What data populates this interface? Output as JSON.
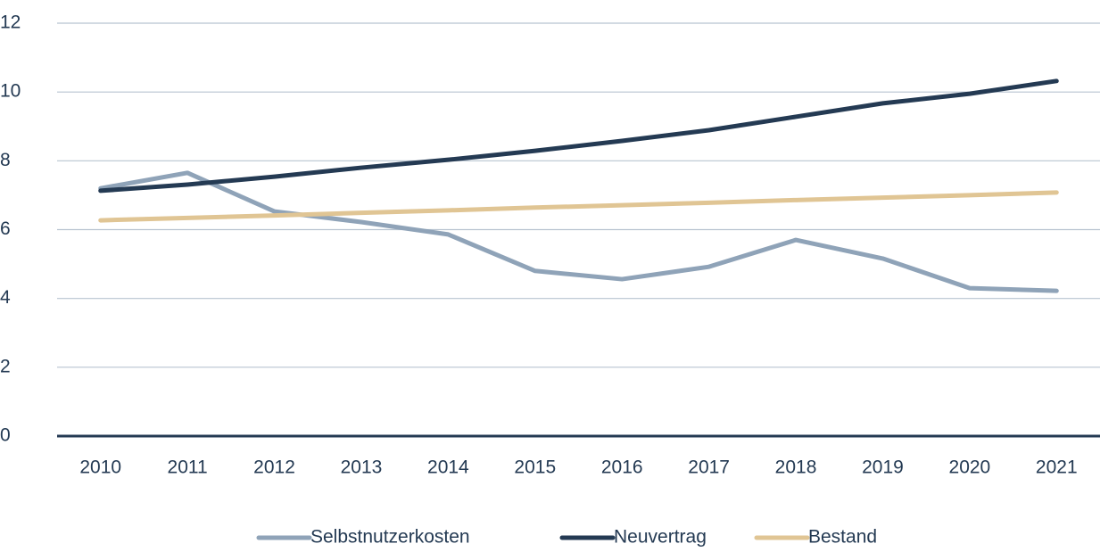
{
  "chart_data": {
    "type": "line",
    "categories": [
      "2010",
      "2011",
      "2012",
      "2013",
      "2014",
      "2015",
      "2016",
      "2017",
      "2018",
      "2019",
      "2020",
      "2021"
    ],
    "series": [
      {
        "name": "Selbstnutzerkosten",
        "color": "#8fa3b8",
        "values": [
          7.2,
          7.65,
          6.53,
          6.22,
          5.86,
          4.8,
          4.56,
          4.92,
          5.7,
          5.16,
          4.3,
          4.22
        ]
      },
      {
        "name": "Neuvertrag",
        "color": "#243a53",
        "values": [
          7.13,
          7.31,
          7.54,
          7.8,
          8.03,
          8.29,
          8.58,
          8.89,
          9.28,
          9.67,
          9.95,
          10.32
        ]
      },
      {
        "name": "Bestand",
        "color": "#e0c594",
        "values": [
          6.27,
          6.34,
          6.41,
          6.49,
          6.56,
          6.64,
          6.71,
          6.78,
          6.86,
          6.93,
          7.0,
          7.08
        ]
      }
    ],
    "ylim": [
      0,
      12
    ],
    "yticks": [
      0,
      2,
      4,
      6,
      8,
      10,
      12
    ],
    "grid": true,
    "legend": "bottom"
  }
}
